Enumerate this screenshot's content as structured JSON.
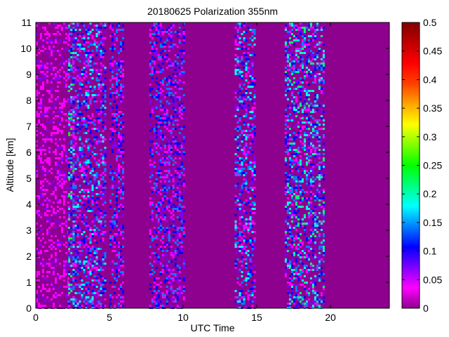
{
  "chart_data": {
    "type": "heatmap",
    "title": "20180625 Polarization 355nm",
    "xlabel": "UTC Time",
    "ylabel": "Altitude [km]",
    "xlim": [
      0,
      24
    ],
    "ylim": [
      0,
      11
    ],
    "x_ticks": [
      0,
      5,
      10,
      15,
      20
    ],
    "y_ticks": [
      0,
      1,
      2,
      3,
      4,
      5,
      6,
      7,
      8,
      9,
      10,
      11
    ],
    "colorbar": {
      "min": 0,
      "max": 0.5,
      "ticks": [
        "0",
        "0.05",
        "0.1",
        "0.15",
        "0.2",
        "0.25",
        "0.3",
        "0.35",
        "0.4",
        "0.45",
        "0.5"
      ],
      "colormap": [
        "#8e008e",
        "#ff00ff",
        "#7f00ff",
        "#0000ff",
        "#0080ff",
        "#00ffff",
        "#00ff80",
        "#00ff00",
        "#80ff00",
        "#ffff00",
        "#ffa500",
        "#ff4000",
        "#ff0000",
        "#c00000",
        "#800000"
      ]
    },
    "background_value": 0.0,
    "description_segments": [
      {
        "t0": 0.0,
        "t1": 2.2,
        "alt_max": 11,
        "noise": 0.05
      },
      {
        "t0": 2.2,
        "t1": 2.5,
        "alt_max": 11,
        "noise": 0.15
      },
      {
        "t0": 2.5,
        "t1": 4.7,
        "alt_max": 11,
        "noise": 0.12
      },
      {
        "t0": 5.0,
        "t1": 5.9,
        "alt_max": 11,
        "noise": 0.1
      },
      {
        "t0": 7.7,
        "t1": 10.0,
        "alt_max": 11,
        "noise": 0.1
      },
      {
        "t0": 13.5,
        "t1": 14.9,
        "alt_max": 11,
        "noise": 0.12
      },
      {
        "t0": 16.9,
        "t1": 19.5,
        "alt_max": 11,
        "noise": 0.14
      }
    ]
  }
}
